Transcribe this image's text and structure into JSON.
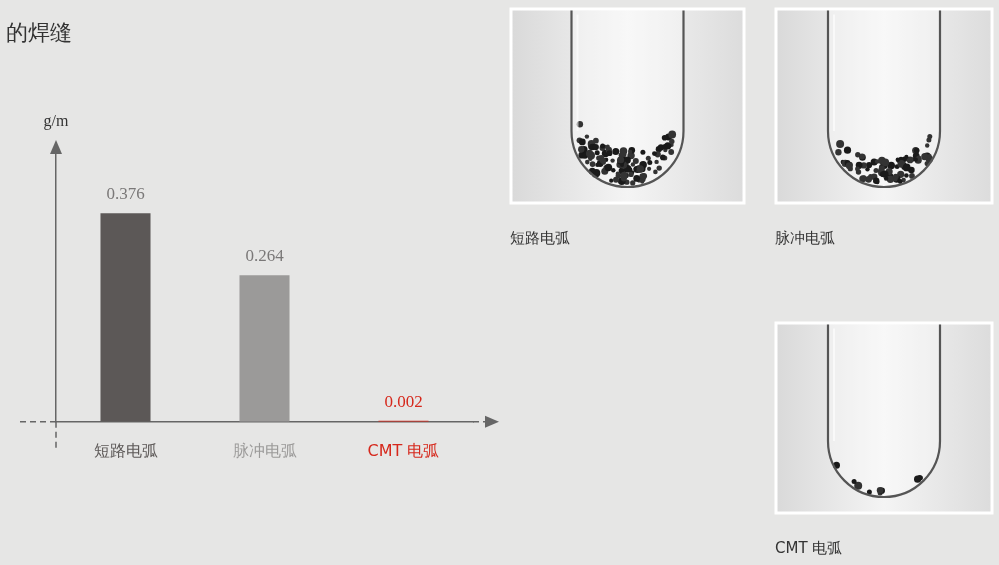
{
  "chart_data": {
    "type": "bar",
    "title": "的焊缝",
    "y_label": "g/m",
    "categories": [
      "短路电弧",
      "脉冲电弧",
      "CMT 电弧"
    ],
    "values": [
      0.376,
      0.264,
      0.002
    ],
    "colors": [
      "#5c5857",
      "#9b9a99",
      "#d6281c"
    ],
    "ylim": [
      0,
      0.49
    ],
    "yticks": [],
    "grid": false,
    "data_labels": true,
    "tick_labels": "x"
  },
  "photos": [
    {
      "caption": "短路电弧"
    },
    {
      "caption": "脉冲电弧"
    },
    {
      "caption": "CMT 电弧"
    }
  ]
}
